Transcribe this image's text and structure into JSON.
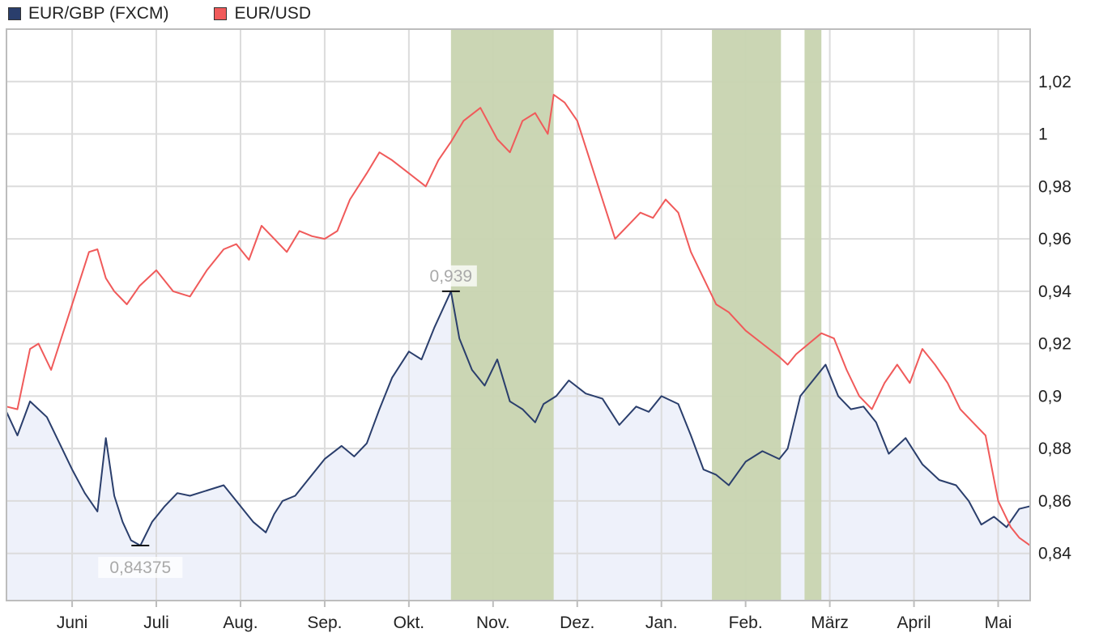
{
  "chart_data": {
    "type": "line",
    "title": "",
    "xlabel": "",
    "ylabel": "",
    "ylim": [
      0.822,
      1.04
    ],
    "grid": true,
    "legend": "top-left",
    "x_tick_labels": [
      "Juni",
      "Juli",
      "Aug.",
      "Sep.",
      "Okt.",
      "Nov.",
      "Dez.",
      "Jan.",
      "Feb.",
      "März",
      "April",
      "Mai"
    ],
    "x_tick_positions": [
      0.5,
      1.5,
      2.5,
      3.5,
      4.5,
      5.5,
      6.5,
      7.5,
      8.5,
      9.5,
      10.5,
      11.5
    ],
    "x_range": [
      -0.28,
      11.88
    ],
    "y_ticks": [
      0.84,
      0.86,
      0.88,
      0.9,
      0.92,
      0.94,
      0.96,
      0.98,
      1.0,
      1.02
    ],
    "y_tick_labels": [
      "0,84",
      "0,86",
      "0,88",
      "0,9",
      "0,92",
      "0,94",
      "0,96",
      "0,98",
      "1",
      "1,02"
    ],
    "shaded_ranges": [
      [
        5.0,
        6.22
      ],
      [
        8.1,
        8.92
      ],
      [
        9.2,
        9.4
      ]
    ],
    "shade_color": "#c8d4b0",
    "annotations": [
      {
        "text": "0,939",
        "x": 5.0,
        "y": 0.94
      },
      {
        "text": "0,84375",
        "x": 1.31,
        "y": 0.843
      }
    ],
    "series": [
      {
        "name": "EUR/GBP (FXCM)",
        "color": "#2a3e6c",
        "area_color": "#eef1fa",
        "x": [
          -0.28,
          -0.15,
          0.0,
          0.2,
          0.35,
          0.5,
          0.65,
          0.8,
          0.9,
          1.0,
          1.1,
          1.2,
          1.31,
          1.45,
          1.6,
          1.75,
          1.9,
          2.1,
          2.3,
          2.5,
          2.65,
          2.8,
          2.9,
          3.0,
          3.15,
          3.3,
          3.5,
          3.7,
          3.85,
          4.0,
          4.15,
          4.3,
          4.5,
          4.65,
          4.8,
          5.0,
          5.1,
          5.25,
          5.4,
          5.55,
          5.7,
          5.85,
          6.0,
          6.1,
          6.25,
          6.4,
          6.6,
          6.8,
          7.0,
          7.2,
          7.35,
          7.5,
          7.7,
          7.85,
          8.0,
          8.15,
          8.3,
          8.5,
          8.7,
          8.9,
          9.0,
          9.15,
          9.3,
          9.45,
          9.6,
          9.75,
          9.9,
          10.05,
          10.2,
          10.4,
          10.6,
          10.8,
          11.0,
          11.15,
          11.3,
          11.45,
          11.6,
          11.75,
          11.88
        ],
        "y": [
          0.894,
          0.885,
          0.898,
          0.892,
          0.882,
          0.872,
          0.863,
          0.856,
          0.884,
          0.862,
          0.852,
          0.845,
          0.843,
          0.852,
          0.858,
          0.863,
          0.862,
          0.864,
          0.866,
          0.858,
          0.852,
          0.848,
          0.855,
          0.86,
          0.862,
          0.868,
          0.876,
          0.881,
          0.877,
          0.882,
          0.895,
          0.907,
          0.917,
          0.914,
          0.926,
          0.94,
          0.922,
          0.91,
          0.904,
          0.914,
          0.898,
          0.895,
          0.89,
          0.897,
          0.9,
          0.906,
          0.901,
          0.899,
          0.889,
          0.896,
          0.894,
          0.9,
          0.897,
          0.885,
          0.872,
          0.87,
          0.866,
          0.875,
          0.879,
          0.876,
          0.88,
          0.9,
          0.906,
          0.912,
          0.9,
          0.895,
          0.896,
          0.89,
          0.878,
          0.884,
          0.874,
          0.868,
          0.866,
          0.86,
          0.851,
          0.854,
          0.85,
          0.857,
          0.858
        ]
      },
      {
        "name": "EUR/USD",
        "color": "#f05a5a",
        "x": [
          -0.28,
          -0.15,
          0.0,
          0.1,
          0.25,
          0.4,
          0.55,
          0.7,
          0.8,
          0.9,
          1.0,
          1.15,
          1.3,
          1.5,
          1.7,
          1.9,
          2.1,
          2.3,
          2.45,
          2.6,
          2.75,
          2.9,
          3.05,
          3.2,
          3.35,
          3.5,
          3.65,
          3.8,
          4.0,
          4.15,
          4.3,
          4.5,
          4.7,
          4.85,
          5.0,
          5.15,
          5.35,
          5.55,
          5.7,
          5.85,
          6.0,
          6.15,
          6.22,
          6.35,
          6.5,
          6.65,
          6.8,
          6.95,
          7.1,
          7.25,
          7.4,
          7.55,
          7.7,
          7.85,
          8.0,
          8.15,
          8.3,
          8.5,
          8.7,
          8.9,
          9.0,
          9.1,
          9.25,
          9.4,
          9.55,
          9.7,
          9.85,
          10.0,
          10.15,
          10.3,
          10.45,
          10.6,
          10.75,
          10.9,
          11.05,
          11.2,
          11.35,
          11.5,
          11.65,
          11.75,
          11.88
        ],
        "y": [
          0.896,
          0.895,
          0.918,
          0.92,
          0.91,
          0.925,
          0.94,
          0.955,
          0.956,
          0.945,
          0.94,
          0.935,
          0.942,
          0.948,
          0.94,
          0.938,
          0.948,
          0.956,
          0.958,
          0.952,
          0.965,
          0.96,
          0.955,
          0.963,
          0.961,
          0.96,
          0.963,
          0.975,
          0.985,
          0.993,
          0.99,
          0.985,
          0.98,
          0.99,
          0.997,
          1.005,
          1.01,
          0.998,
          0.993,
          1.005,
          1.008,
          1.0,
          1.015,
          1.012,
          1.005,
          0.99,
          0.975,
          0.96,
          0.965,
          0.97,
          0.968,
          0.975,
          0.97,
          0.955,
          0.945,
          0.935,
          0.932,
          0.925,
          0.92,
          0.915,
          0.912,
          0.916,
          0.92,
          0.924,
          0.922,
          0.91,
          0.9,
          0.895,
          0.905,
          0.912,
          0.905,
          0.918,
          0.912,
          0.905,
          0.895,
          0.89,
          0.885,
          0.86,
          0.85,
          0.846,
          0.843
        ]
      }
    ]
  },
  "colors": {
    "grid": "#dcdcdc",
    "axis_frame": "#bdbdbd"
  }
}
